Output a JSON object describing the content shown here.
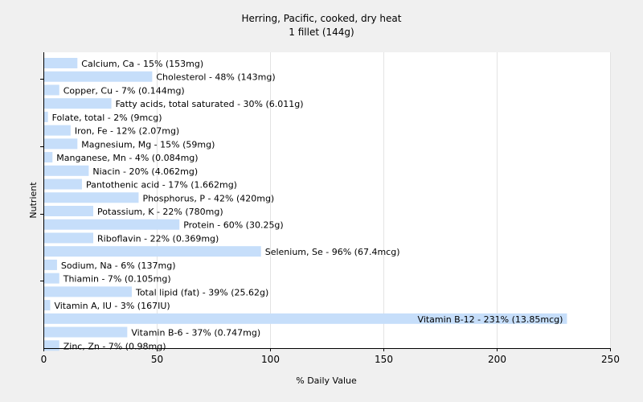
{
  "chart_data": {
    "type": "bar",
    "orientation": "horizontal",
    "title": "Herring, Pacific, cooked, dry heat",
    "subtitle": "1 fillet (144g)",
    "xlabel": "% Daily Value",
    "ylabel": "Nutrient",
    "xlim": [
      0,
      250
    ],
    "xticks": [
      "0",
      "50",
      "100",
      "150",
      "200",
      "250"
    ],
    "grid": true,
    "legend": "none",
    "colors": {
      "bar": "#c6defa",
      "background": "#f0f0f0",
      "plot": "#ffffff",
      "grid": "#e3e3e3",
      "axis": "#000000"
    },
    "categories": [
      "Calcium, Ca",
      "Cholesterol",
      "Copper, Cu",
      "Fatty acids, total saturated",
      "Folate, total",
      "Iron, Fe",
      "Magnesium, Mg",
      "Manganese, Mn",
      "Niacin",
      "Pantothenic acid",
      "Phosphorus, P",
      "Potassium, K",
      "Protein",
      "Riboflavin",
      "Selenium, Se",
      "Sodium, Na",
      "Thiamin",
      "Total lipid (fat)",
      "Vitamin A, IU",
      "Vitamin B-12",
      "Vitamin B-6",
      "Zinc, Zn"
    ],
    "values": [
      15,
      48,
      7,
      30,
      2,
      12,
      15,
      4,
      20,
      17,
      42,
      22,
      60,
      22,
      96,
      6,
      7,
      39,
      3,
      231,
      37,
      7
    ],
    "labels": [
      "Calcium, Ca - 15% (153mg)",
      "Cholesterol - 48% (143mg)",
      "Copper, Cu - 7% (0.144mg)",
      "Fatty acids, total saturated - 30% (6.011g)",
      "Folate, total - 2% (9mcg)",
      "Iron, Fe - 12% (2.07mg)",
      "Magnesium, Mg - 15% (59mg)",
      "Manganese, Mn - 4% (0.084mg)",
      "Niacin - 20% (4.062mg)",
      "Pantothenic acid - 17% (1.662mg)",
      "Phosphorus, P - 42% (420mg)",
      "Potassium, K - 22% (780mg)",
      "Protein - 60% (30.25g)",
      "Riboflavin - 22% (0.369mg)",
      "Selenium, Se - 96% (67.4mcg)",
      "Sodium, Na - 6% (137mg)",
      "Thiamin - 7% (0.105mg)",
      "Total lipid (fat) - 39% (25.62g)",
      "Vitamin A, IU - 3% (167IU)",
      "Vitamin B-12 - 231% (13.85mcg)",
      "Vitamin B-6 - 37% (0.747mg)",
      "Zinc, Zn - 7% (0.98mg)"
    ]
  }
}
